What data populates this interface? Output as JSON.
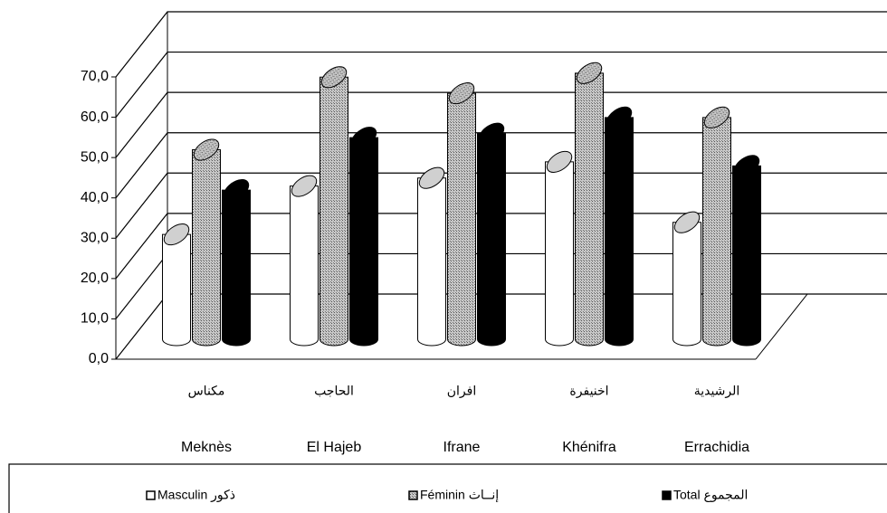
{
  "chart_data": {
    "type": "bar3d",
    "categories": [
      "Meknès",
      "El Hajeb",
      "Ifrane",
      "Khénifra",
      "Errachidia"
    ],
    "categories_ar": [
      "مكناس",
      "الحاجب",
      "افران",
      "اخنيفرة",
      "الرشيدية"
    ],
    "series": [
      {
        "name": "Masculin  ذكور",
        "color": "#ffffff",
        "values": [
          26,
          38,
          40,
          44,
          29
        ]
      },
      {
        "name": "Féminin  إنــاث",
        "color": "#a0a0a0",
        "values": [
          47,
          65,
          61,
          66,
          55
        ]
      },
      {
        "name": "Total المجموع",
        "color": "#000000",
        "values": [
          37,
          50,
          51,
          55,
          43
        ]
      }
    ],
    "ylim": [
      0,
      70
    ],
    "yticks": [
      {
        "value": 0,
        "label": "0,0"
      },
      {
        "value": 10,
        "label": "10,0"
      },
      {
        "value": 20,
        "label": "20,0"
      },
      {
        "value": 30,
        "label": "30,0"
      },
      {
        "value": 40,
        "label": "40,0"
      },
      {
        "value": 50,
        "label": "50,0"
      },
      {
        "value": 60,
        "label": "60,0"
      },
      {
        "value": 70,
        "label": "70,0"
      }
    ],
    "grid": true
  }
}
